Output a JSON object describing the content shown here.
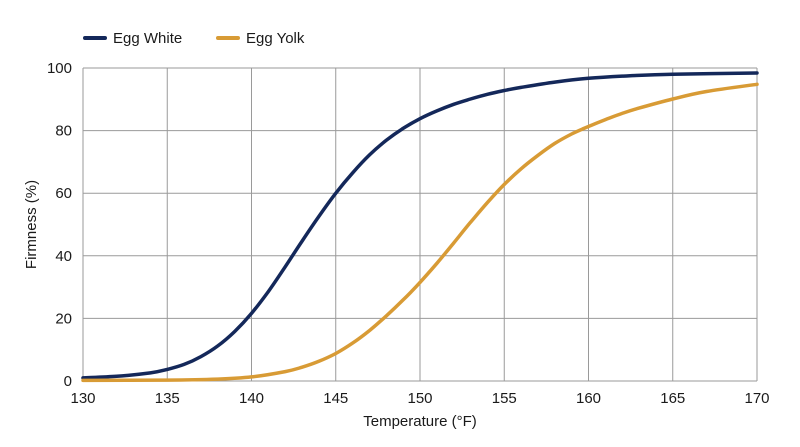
{
  "chart_data": {
    "type": "line",
    "title": "",
    "xlabel": "Temperature (°F)",
    "ylabel": "Firmness (%)",
    "xlim": [
      130,
      170
    ],
    "ylim": [
      0,
      100
    ],
    "x_ticks": [
      130,
      135,
      140,
      145,
      150,
      155,
      160,
      165,
      170
    ],
    "y_ticks": [
      0,
      20,
      40,
      60,
      80,
      100
    ],
    "grid": true,
    "legend_position": "top-left",
    "series": [
      {
        "name": "Egg White",
        "color": "#14285a",
        "x": [
          130,
          132,
          134,
          135,
          136,
          137,
          138,
          139,
          140,
          141,
          142,
          143,
          144,
          145,
          146,
          147,
          148,
          149,
          150,
          151,
          152,
          153,
          154,
          155,
          156,
          158,
          160,
          162,
          165,
          170
        ],
        "y": [
          1,
          1.5,
          2.6,
          3.7,
          5.3,
          7.8,
          11.2,
          15.8,
          21.6,
          28.6,
          36.5,
          44.7,
          52.6,
          60,
          66.5,
          72.2,
          76.9,
          80.7,
          83.8,
          86.3,
          88.4,
          90.1,
          91.6,
          92.8,
          93.8,
          95.5,
          96.7,
          97.4,
          98,
          98.4
        ]
      },
      {
        "name": "Egg Yolk",
        "color": "#d89b35",
        "x": [
          130,
          135,
          138,
          140,
          142,
          143,
          144,
          145,
          146,
          147,
          148,
          149,
          150,
          151,
          152,
          153,
          154,
          155,
          156,
          157,
          158,
          159,
          160,
          161,
          162,
          163,
          165,
          167,
          170
        ],
        "y": [
          0.2,
          0.3,
          0.6,
          1.3,
          3,
          4.4,
          6.3,
          8.8,
          12.1,
          16.1,
          20.8,
          25.9,
          31.5,
          37.6,
          44.1,
          50.7,
          57,
          62.8,
          67.8,
          72.1,
          75.9,
          78.9,
          81.3,
          83.5,
          85.5,
          87.2,
          90.1,
          92.5,
          94.8
        ]
      }
    ]
  }
}
